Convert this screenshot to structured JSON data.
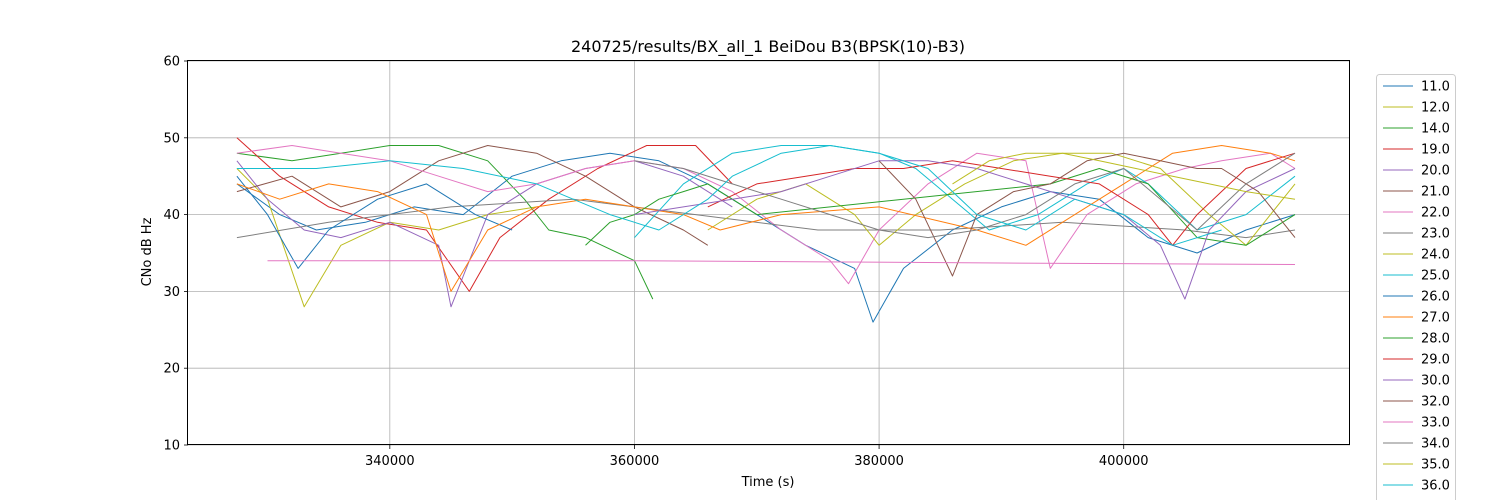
{
  "chart_data": {
    "type": "line",
    "title": "240725/results/BX_all_1 BeiDou B3(BPSK(10)-B3)",
    "xlabel": "Time (s)",
    "ylabel": "CNo dB Hz",
    "xlim": [
      323500,
      418500
    ],
    "ylim": [
      10,
      60
    ],
    "xticks": [
      340000,
      360000,
      380000,
      400000
    ],
    "xtick_labels": [
      "340000",
      "360000",
      "380000",
      "400000"
    ],
    "yticks": [
      10,
      20,
      30,
      40,
      50,
      60
    ],
    "ytick_labels": [
      "10",
      "20",
      "30",
      "40",
      "50",
      "60"
    ],
    "grid": true,
    "legend_placement": "outside-right",
    "series": [
      {
        "name": "11.0",
        "color": "#1f77b4",
        "x": [
          327500,
          331000,
          334000,
          338000,
          342000,
          346000,
          350000,
          354000,
          358000,
          362000,
          366000,
          370000,
          374000,
          378000,
          379500,
          382000,
          386000,
          390000,
          394000,
          398000,
          402000,
          406000,
          410000,
          414000
        ],
        "y": [
          44,
          40,
          38,
          39,
          41,
          40,
          45,
          47,
          48,
          47,
          44,
          40,
          36,
          33,
          26,
          33,
          38,
          41,
          43,
          42,
          37,
          35,
          38,
          40
        ]
      },
      {
        "name": "12.0",
        "color": "#bcbd22",
        "x": [
          327500,
          330000,
          333000,
          336000,
          340000,
          344000,
          348000,
          352000
        ],
        "y": [
          46,
          42,
          28,
          36,
          39,
          38,
          40,
          41
        ]
      },
      {
        "name": "14.0",
        "color": "#2ca02c",
        "x": [
          327500,
          332000,
          336000,
          340000,
          344000,
          348000,
          351000,
          353000,
          356000,
          360000,
          361500
        ],
        "y": [
          48,
          47,
          48,
          49,
          49,
          47,
          42,
          38,
          37,
          34,
          29
        ]
      },
      {
        "name": "19.0",
        "color": "#d62728",
        "x": [
          327500,
          331000,
          335000,
          339000,
          343000,
          346500,
          349000,
          353000,
          357000,
          361000,
          365000,
          368000
        ],
        "y": [
          50,
          45,
          41,
          39,
          38,
          30,
          37,
          42,
          46,
          49,
          49,
          44
        ]
      },
      {
        "name": "20.0",
        "color": "#9467bd",
        "x": [
          327500,
          330000,
          333000,
          336000,
          340000,
          344000,
          345000,
          348000,
          352000,
          356000,
          360000,
          364000,
          368000
        ],
        "y": [
          47,
          42,
          38,
          37,
          39,
          36,
          28,
          40,
          44,
          46,
          47,
          45,
          41
        ]
      },
      {
        "name": "21.0",
        "color": "#8c564b",
        "x": [
          327500,
          332000,
          336000,
          340000,
          344000,
          348000,
          352000,
          356000,
          360000,
          364000,
          366000
        ],
        "y": [
          43,
          45,
          41,
          43,
          47,
          49,
          48,
          45,
          41,
          38,
          36
        ]
      },
      {
        "name": "22.0",
        "color": "#e377c2",
        "x": [
          327500,
          332000,
          336000,
          340000,
          344000,
          348000,
          352000,
          356000,
          360000,
          364000,
          368000,
          372000,
          376000,
          377500,
          380000,
          384000,
          388000,
          392000,
          394000,
          397000,
          401000,
          405000,
          408000,
          412000,
          414000
        ],
        "y": [
          48,
          49,
          48,
          47,
          45,
          43,
          44,
          46,
          47,
          46,
          43,
          38,
          34,
          31,
          38,
          44,
          48,
          47,
          33,
          40,
          44,
          46,
          47,
          48,
          46
        ]
      },
      {
        "name": "23.0",
        "color": "#7f7f7f",
        "x": [
          327500,
          335000,
          345000,
          355000,
          365000,
          375000,
          385000,
          395000,
          405000,
          410000,
          414000
        ],
        "y": [
          37,
          39,
          41,
          42,
          40,
          38,
          38,
          39,
          38,
          37,
          38
        ]
      },
      {
        "name": "24.0",
        "color": "#bcbd22",
        "x": [
          366000,
          370000,
          374000,
          378000,
          380000,
          383000,
          387000,
          391000,
          395000,
          399000,
          403000,
          407000,
          410000,
          414000
        ],
        "y": [
          38,
          42,
          44,
          40,
          36,
          40,
          44,
          47,
          48,
          48,
          46,
          40,
          36,
          44
        ]
      },
      {
        "name": "25.0",
        "color": "#17becf",
        "x": [
          360000,
          364000,
          368000,
          372000,
          376000,
          380000,
          383000,
          386000,
          389000,
          393000,
          397000,
          400000,
          402000,
          406000,
          410000,
          414000
        ],
        "y": [
          37,
          44,
          48,
          49,
          49,
          48,
          46,
          42,
          38,
          40,
          44,
          46,
          44,
          38,
          40,
          45
        ]
      },
      {
        "name": "26.0",
        "color": "#1f77b4",
        "x": [
          327500,
          330000,
          332500,
          335000,
          339000,
          343000,
          347000,
          350000
        ],
        "y": [
          45,
          40,
          33,
          38,
          42,
          44,
          40,
          38
        ]
      },
      {
        "name": "27.0",
        "color": "#ff7f0e",
        "x": [
          327500,
          331000,
          335000,
          339000,
          343000,
          345000,
          348000,
          352000,
          356000,
          360000,
          364000,
          367000,
          372000,
          380000,
          388000,
          392000,
          396000,
          400000,
          404000,
          408000,
          412000,
          414000
        ],
        "y": [
          44,
          42,
          44,
          43,
          40,
          30,
          38,
          41,
          42,
          41,
          40,
          38,
          40,
          41,
          38,
          36,
          40,
          44,
          48,
          49,
          48,
          47
        ]
      },
      {
        "name": "28.0",
        "color": "#2ca02c",
        "x": [
          356000,
          358000,
          360000,
          362000,
          364000,
          366000,
          368000,
          370000,
          394000,
          398000,
          402000,
          406000,
          410000,
          414000
        ],
        "y": [
          36,
          39,
          40,
          42,
          43,
          44,
          42,
          40,
          44,
          46,
          44,
          37,
          36,
          40
        ]
      },
      {
        "name": "29.0",
        "color": "#d62728",
        "x": [
          366000,
          370000,
          374000,
          378000,
          382000,
          386000,
          390000,
          394000,
          398000,
          402000,
          404000,
          406000,
          410000,
          414000
        ],
        "y": [
          41,
          44,
          45,
          46,
          46,
          47,
          46,
          45,
          44,
          40,
          36,
          40,
          46,
          48
        ]
      },
      {
        "name": "30.0",
        "color": "#9467bd",
        "x": [
          360000,
          364000,
          368000,
          372000,
          376000,
          380000,
          384000,
          388000,
          392000,
          396000,
          400000,
          403000,
          405000,
          407000,
          410000,
          414000
        ],
        "y": [
          40,
          41,
          42,
          43,
          45,
          47,
          47,
          46,
          44,
          42,
          40,
          36,
          29,
          38,
          43,
          46
        ]
      },
      {
        "name": "32.0",
        "color": "#8c564b",
        "x": [
          380000,
          383000,
          386000,
          388000,
          391000,
          394000,
          397000,
          400000,
          403000,
          406000,
          408000,
          411000,
          414000
        ],
        "y": [
          47,
          42,
          32,
          40,
          43,
          44,
          47,
          48,
          47,
          46,
          46,
          43,
          37
        ]
      },
      {
        "name": "33.0",
        "color": "#e377c2",
        "x": [
          330000,
          360000,
          390000,
          414000
        ],
        "y": [
          34,
          34,
          33.7,
          33.5
        ]
      },
      {
        "name": "34.0",
        "color": "#7f7f7f",
        "x": [
          360000,
          364000,
          368000,
          372000,
          376000,
          380000,
          384000,
          388000,
          392000,
          396000,
          400000,
          403000,
          406000,
          410000,
          414000
        ],
        "y": [
          47,
          46,
          44,
          42,
          40,
          38,
          37,
          38,
          40,
          44,
          46,
          42,
          38,
          44,
          48
        ]
      },
      {
        "name": "35.0",
        "color": "#bcbd22",
        "x": [
          386000,
          389000,
          392000,
          395000,
          398000,
          401000,
          404000,
          407000,
          410000,
          414000
        ],
        "y": [
          44,
          47,
          48,
          48,
          47,
          46,
          45,
          44,
          43,
          42
        ]
      },
      {
        "name": "36.0",
        "color": "#17becf",
        "x": [
          327500,
          334000,
          340000,
          346000,
          352000,
          358000,
          362000,
          366000,
          368000,
          372000,
          376000,
          380000,
          384000,
          388000,
          392000,
          396000,
          400000,
          404000,
          408000
        ],
        "y": [
          46,
          46,
          47,
          46,
          44,
          40,
          38,
          42,
          45,
          48,
          49,
          48,
          46,
          40,
          38,
          42,
          40,
          36,
          38
        ]
      }
    ]
  }
}
